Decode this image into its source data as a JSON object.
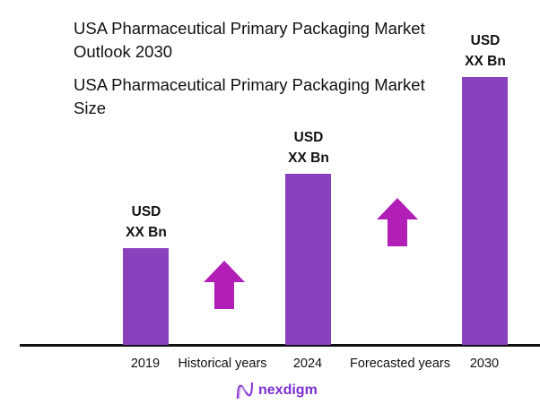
{
  "titles": {
    "outlook": "USA Pharmaceutical Primary Packaging Market Outlook 2030",
    "size": "USA Pharmaceutical Primary Packaging Market Size"
  },
  "chart_data": {
    "type": "bar",
    "categories": [
      "2019",
      "2024",
      "2030"
    ],
    "relative_values": [
      36,
      64,
      100
    ],
    "data_labels": [
      {
        "line1": "USD",
        "line2": "XX Bn"
      },
      {
        "line1": "USD",
        "line2": "XX Bn"
      },
      {
        "line1": "USD",
        "line2": "XX Bn"
      }
    ],
    "period_labels": [
      "Historical years",
      "Forecasted years"
    ],
    "grid": false,
    "colors": {
      "bar": "#8941bd",
      "arrow": "#b11fb7",
      "axis": "#111111"
    }
  },
  "logo": {
    "text": "nexdigm",
    "color": "#7b2fd0"
  }
}
